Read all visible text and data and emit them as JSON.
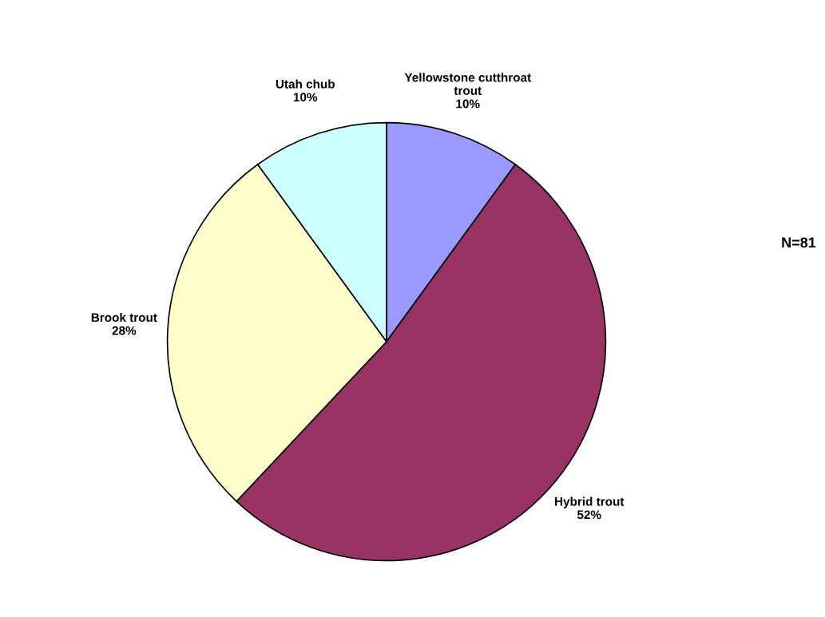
{
  "chart_data": {
    "type": "pie",
    "categories": [
      "Yellowstone cutthroat\ntrout",
      "Hybrid trout",
      "Brook trout",
      "Utah chub"
    ],
    "values": [
      10,
      52,
      28,
      10
    ],
    "value_labels": [
      "10%",
      "52%",
      "28%",
      "10%"
    ],
    "colors": [
      "#9999ff",
      "#993366",
      "#ffffcc",
      "#ccffff"
    ],
    "annotations": [
      "N=81"
    ]
  }
}
